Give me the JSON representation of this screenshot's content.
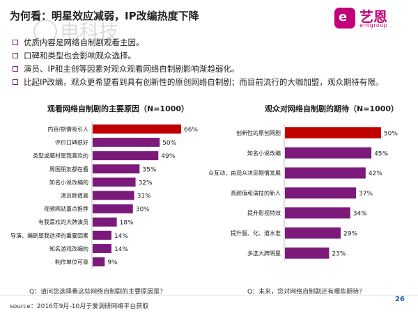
{
  "header": {
    "title": "为何看：明星效应减弱，IP改编热度下降",
    "brand_mark": "e",
    "brand_name": "艺恩",
    "brand_sub": "entgroup",
    "watermark_text": "电科技"
  },
  "bullets": [
    "优质内容是网络自制剧观看主因。",
    "口碑和类型也会影响观众选择。",
    "演员、IP和主创等因素对观众观看网络自制剧影响渐趋弱化。",
    "比起IP改编，观众更希望看到具有创新性的原创网络自制剧；而目前流行的大咖加盟，观众期待有限。"
  ],
  "chart_data": [
    {
      "type": "bar",
      "orientation": "horizontal",
      "title": "观看网络自制剧的主要原因（N=1000）",
      "question": "Q：请问您选择看这些网络自制剧的主要原因是？",
      "categories": [
        "内容/剧情吸引人",
        "评价口碑很好",
        "类型或题材是我喜欢的",
        "周围朋友都在看",
        "知名小说改编的",
        "演员颜值高",
        "视频网站重点推荐",
        "有我喜欢的大牌演员",
        "导演、编剧是我选择的重要因素",
        "知名游戏改编的",
        "制作单位可靠"
      ],
      "values": [
        66,
        50,
        49,
        35,
        32,
        31,
        30,
        18,
        14,
        14,
        9
      ],
      "labels": [
        "66%",
        "50%",
        "49%",
        "35%",
        "32%",
        "31%",
        "30%",
        "18%",
        "14%",
        "14%",
        "9%"
      ],
      "highlight_index": 0,
      "colors": {
        "highlight": "#c00000",
        "default": "#7b1a7b"
      }
    },
    {
      "type": "bar",
      "orientation": "horizontal",
      "title": "观众对网络自制剧的期待（N=1000）",
      "question": "Q：未来，您对网络自制剧还有哪些期待？",
      "categories": [
        "创新性的原创网剧",
        "知名小说改编",
        "与观众互动，由观众决定剧情发展",
        "高颜值和演技的新人",
        "提升影视特效",
        "提升服、化、道水准",
        "多选大牌明星"
      ],
      "values": [
        50,
        45,
        42,
        37,
        34,
        29,
        23
      ],
      "labels": [
        "50%",
        "45%",
        "42%",
        "37%",
        "34%",
        "29%",
        "23%"
      ],
      "highlight_index": 0,
      "colors": {
        "highlight": "#c00000",
        "default": "#7b1a7b"
      }
    }
  ],
  "footer": {
    "source": "source：2016年9月-10月于爱调研网络平台获取",
    "page_number": "26"
  }
}
